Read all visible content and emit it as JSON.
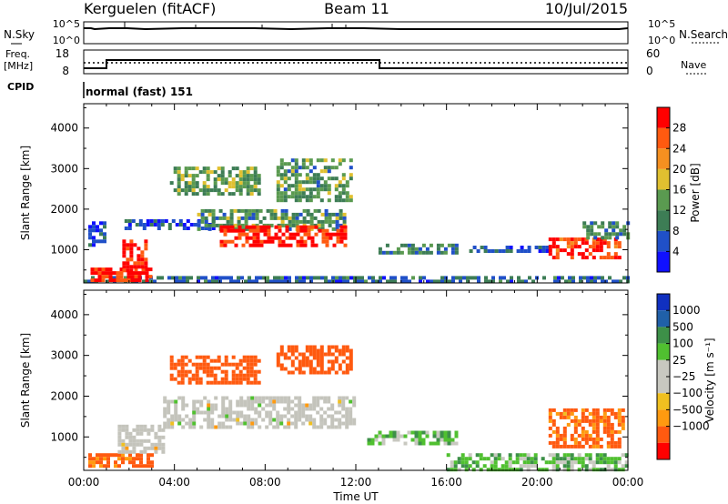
{
  "header": {
    "station": "Kerguelen (fitACF)",
    "beam": "Beam 11",
    "date": "10/Jul/2015"
  },
  "top_panels": {
    "nsky": {
      "label": "N.Sky",
      "y_ticks": [
        "10^5",
        "10^0"
      ],
      "right_label": "N.Search",
      "right_ticks": [
        "10^5",
        "10^0"
      ]
    },
    "freq": {
      "label_line1": "Freq.",
      "label_line2": "[MHz]",
      "y_ticks": [
        "18",
        "8"
      ],
      "right_label": "Nave",
      "right_ticks": [
        "60",
        "0"
      ]
    },
    "cpid": {
      "label": "CPID",
      "value": "normal (fast) 151"
    }
  },
  "colors": {
    "power_scale": [
      "#1010ff",
      "#2050c8",
      "#3d7d55",
      "#5a9a50",
      "#e0c030",
      "#f59020",
      "#ff5a10",
      "#ff0000"
    ],
    "velocity_scale": [
      "#ff0000",
      "#ff5a10",
      "#ff9a10",
      "#f0c020",
      "#c8c8c0",
      "#c8c8c0",
      "#50c030",
      "#3d9048",
      "#2060a8",
      "#1030c0"
    ],
    "ground_scatter": "#c4c4bc"
  },
  "chart_data": [
    {
      "type": "heatmap",
      "panel": "power",
      "ylabel": "Slant Range [km]",
      "ylim": [
        180,
        4600
      ],
      "y_ticks": [
        1000,
        2000,
        3000,
        4000
      ],
      "xlim": [
        0,
        24
      ],
      "x_tick_labels": [
        "00:00",
        "04:00",
        "08:00",
        "12:00",
        "16:00",
        "20:00",
        "00:00"
      ],
      "colorbar": {
        "label": "Power [dB]",
        "ticks": [
          "28",
          "24",
          "20",
          "16",
          "12",
          "8",
          "4"
        ],
        "range": [
          0,
          32
        ]
      },
      "echo_regions": [
        {
          "t": [
            0.0,
            24.0
          ],
          "r": [
            180,
            350
          ],
          "dB": 8
        },
        {
          "t": [
            0.3,
            3.0
          ],
          "r": [
            250,
            560
          ],
          "dB": 30
        },
        {
          "t": [
            1.7,
            2.7
          ],
          "r": [
            500,
            1250
          ],
          "dB": 30
        },
        {
          "t": [
            0.2,
            0.9
          ],
          "r": [
            1100,
            1700
          ],
          "dB": 6
        },
        {
          "t": [
            1.8,
            5.8
          ],
          "r": [
            1500,
            1750
          ],
          "dB": 6
        },
        {
          "t": [
            3.8,
            7.8
          ],
          "r": [
            2350,
            3050
          ],
          "dB": 14
        },
        {
          "t": [
            5.0,
            11.5
          ],
          "r": [
            1500,
            2000
          ],
          "dB": 12
        },
        {
          "t": [
            6.0,
            11.6
          ],
          "r": [
            1150,
            1600
          ],
          "dB": 29
        },
        {
          "t": [
            8.5,
            11.8
          ],
          "r": [
            2200,
            3250
          ],
          "dB": 12
        },
        {
          "t": [
            13.0,
            16.5
          ],
          "r": [
            900,
            1150
          ],
          "dB": 10
        },
        {
          "t": [
            17.0,
            20.5
          ],
          "r": [
            950,
            1100
          ],
          "dB": 6
        },
        {
          "t": [
            20.5,
            23.6
          ],
          "r": [
            850,
            1300
          ],
          "dB": 28
        },
        {
          "t": [
            22.0,
            24.0
          ],
          "r": [
            1300,
            1700
          ],
          "dB": 10
        }
      ]
    },
    {
      "type": "heatmap",
      "panel": "velocity",
      "ylabel": "Slant Range [km]",
      "ylim": [
        180,
        4600
      ],
      "y_ticks": [
        1000,
        2000,
        3000,
        4000
      ],
      "xlim": [
        0,
        24
      ],
      "x_tick_labels": [
        "00:00",
        "04:00",
        "08:00",
        "12:00",
        "16:00",
        "20:00",
        "00:00"
      ],
      "xlabel": "Time UT",
      "colorbar": {
        "label": "Velocity [m s⁻¹]",
        "ticks": [
          "1000",
          "500",
          "100",
          "25",
          "−25",
          "−100",
          "−500",
          "−1000"
        ]
      },
      "echo_regions": [
        {
          "t": [
            0.2,
            3.0
          ],
          "r": [
            250,
            600
          ],
          "v": -150
        },
        {
          "t": [
            1.5,
            3.5
          ],
          "r": [
            600,
            1300
          ],
          "v": 0,
          "ground_scatter": true
        },
        {
          "t": [
            3.5,
            12.0
          ],
          "r": [
            1200,
            2000
          ],
          "v": 0,
          "ground_scatter": true
        },
        {
          "t": [
            3.8,
            7.8
          ],
          "r": [
            2350,
            3000
          ],
          "v": -250
        },
        {
          "t": [
            8.5,
            11.8
          ],
          "r": [
            2600,
            3250
          ],
          "v": -250
        },
        {
          "t": [
            12.5,
            16.5
          ],
          "r": [
            800,
            1150
          ],
          "v": 60
        },
        {
          "t": [
            16.0,
            24.0
          ],
          "r": [
            180,
            600
          ],
          "v": 60
        },
        {
          "t": [
            20.5,
            23.8
          ],
          "r": [
            800,
            1700
          ],
          "v": -120
        }
      ]
    }
  ]
}
